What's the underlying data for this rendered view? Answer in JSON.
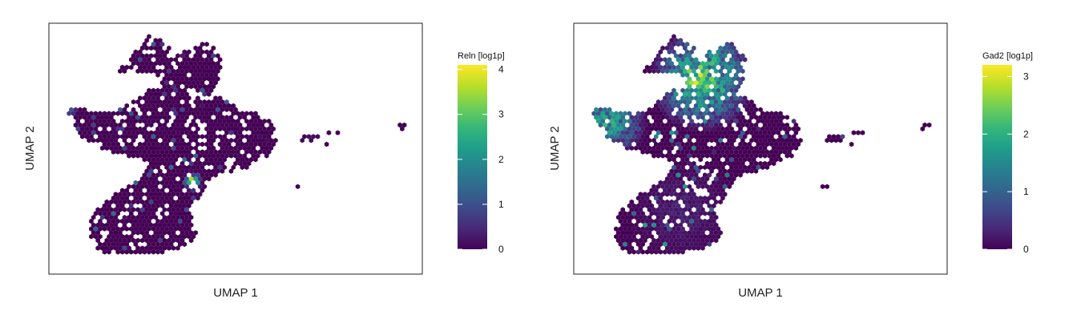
{
  "chart_data": [
    {
      "type": "heatmap",
      "subtype": "hexbin-embedding",
      "xlabel": "UMAP 1",
      "ylabel": "UMAP 2",
      "legend": {
        "title": "Reln [log1p]",
        "placement": "right",
        "colormap": "viridis",
        "range": [
          0,
          4.1
        ],
        "ticks": [
          0,
          1,
          2,
          3,
          4
        ]
      },
      "grid": false,
      "highlights": [
        {
          "region": "central-right cluster",
          "value": 3.6
        },
        {
          "region": "upper-left tip",
          "value": 1.1
        },
        {
          "region": "small right islands",
          "value": 0.2
        }
      ]
    },
    {
      "type": "heatmap",
      "subtype": "hexbin-embedding",
      "xlabel": "UMAP 1",
      "ylabel": "UMAP 2",
      "legend": {
        "title": "Gad2 [log1p]",
        "placement": "right",
        "colormap": "viridis",
        "range": [
          0,
          3.2
        ],
        "ticks": [
          0,
          1,
          2,
          3
        ]
      },
      "grid": false,
      "highlights": [
        {
          "region": "upper arm",
          "value": 2.6
        },
        {
          "region": "left arm",
          "value": 2.0
        },
        {
          "region": "lower lobe",
          "value": 0.3
        }
      ]
    }
  ],
  "colors": {
    "viridis": [
      "#440154",
      "#482878",
      "#3e4989",
      "#31688e",
      "#26828e",
      "#1f9e89",
      "#35b779",
      "#6ece58",
      "#b5de2b",
      "#fde725"
    ],
    "frame": "#222222"
  }
}
